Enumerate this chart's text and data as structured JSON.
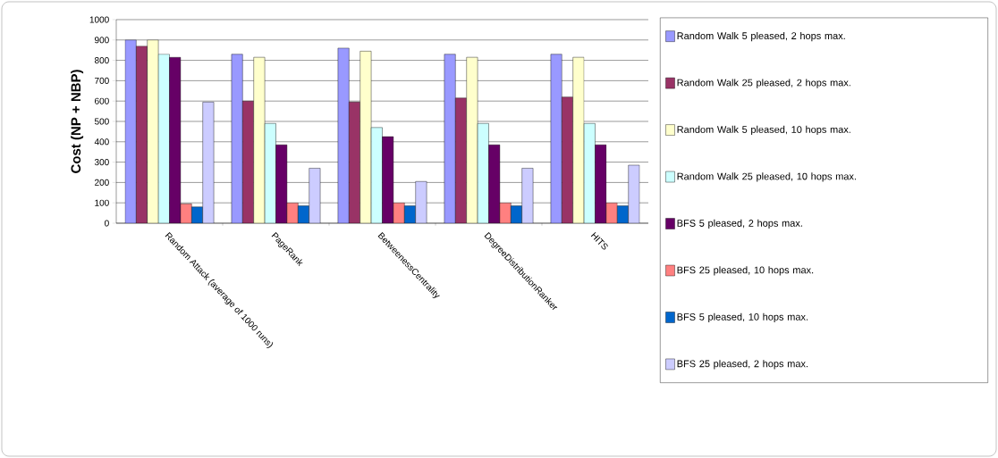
{
  "chart_data": {
    "type": "bar",
    "ylabel": "Cost (NP + NBP)",
    "categories": [
      "Random Attack (average of 1000 runs)",
      "PageRank",
      "BetweenessCentrality",
      "DegreeDistributionRanker",
      "HITS"
    ],
    "series": [
      {
        "name": "Random Walk 5 pleased, 2 hops max.",
        "color": "#9999ff",
        "values": [
          900,
          830,
          860,
          830,
          830
        ]
      },
      {
        "name": "Random Walk 25 pleased, 2 hops max.",
        "color": "#993366",
        "values": [
          870,
          600,
          595,
          615,
          620
        ]
      },
      {
        "name": "Random Walk 5 pleased, 10 hops max.",
        "color": "#ffffcc",
        "values": [
          900,
          815,
          845,
          815,
          815
        ]
      },
      {
        "name": "Random Walk 25 pleased, 10 hops max.",
        "color": "#ccffff",
        "values": [
          830,
          490,
          470,
          490,
          490
        ]
      },
      {
        "name": "BFS 5 pleased, 2 hops max.",
        "color": "#660066",
        "values": [
          815,
          385,
          425,
          385,
          385
        ]
      },
      {
        "name": "BFS 25 pleased, 10 hops max.",
        "color": "#ff8080",
        "values": [
          95,
          100,
          100,
          100,
          100
        ]
      },
      {
        "name": "BFS 5 pleased, 10 hops max.",
        "color": "#0066cc",
        "values": [
          80,
          85,
          85,
          85,
          85
        ]
      },
      {
        "name": "BFS 25 pleased, 2 hops max.",
        "color": "#ccccff",
        "values": [
          595,
          270,
          205,
          270,
          285
        ]
      }
    ],
    "ylim": [
      0,
      1000
    ],
    "yticks": [
      0,
      100,
      200,
      300,
      400,
      500,
      600,
      700,
      800,
      900,
      1000
    ],
    "grid": "y",
    "legend": "right"
  }
}
